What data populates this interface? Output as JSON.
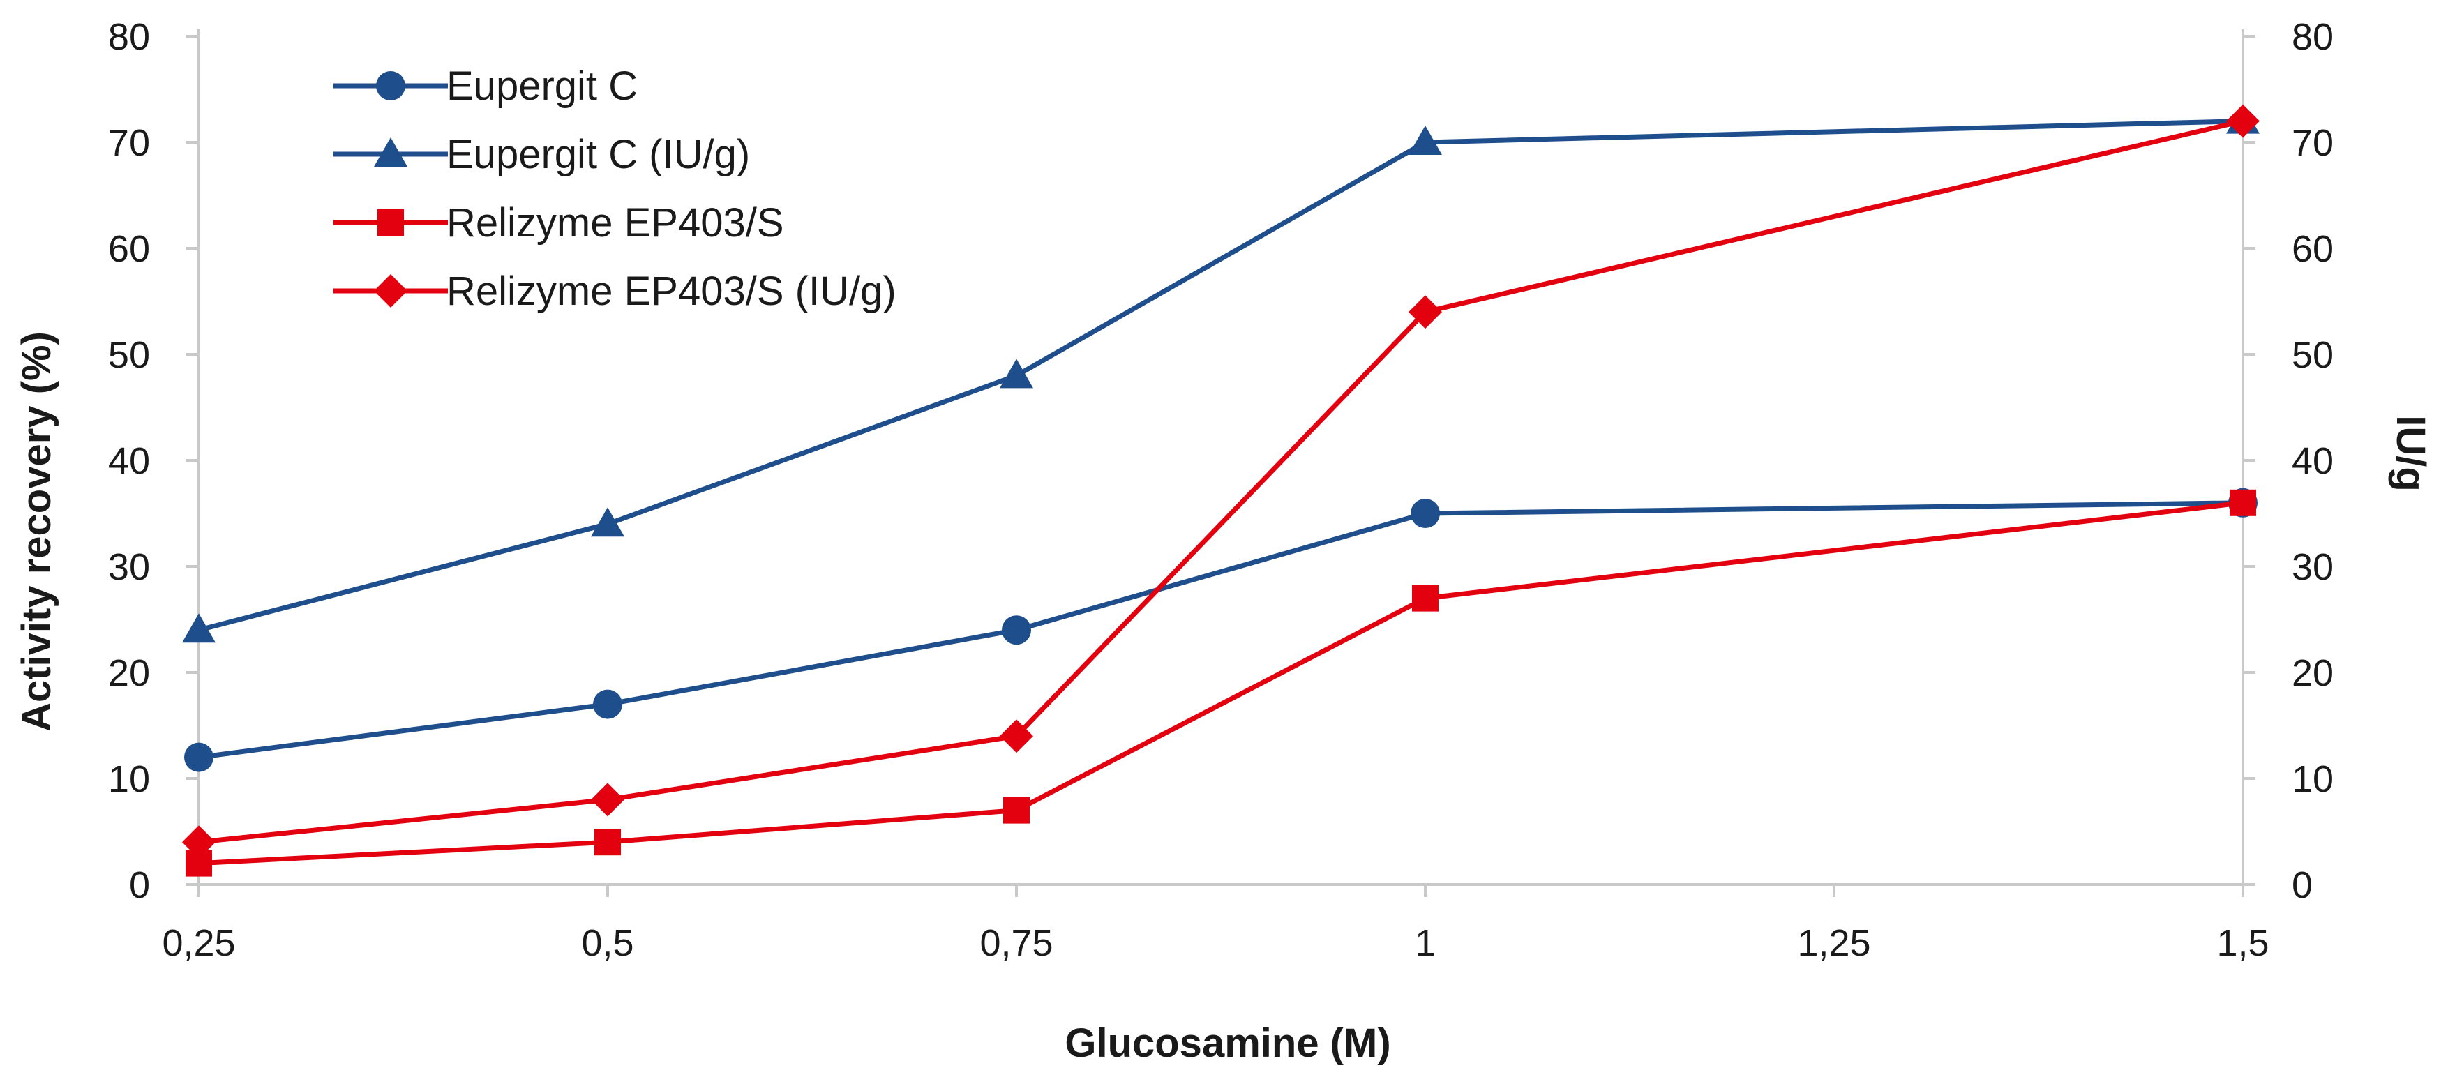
{
  "chart_data": {
    "type": "line",
    "title": "",
    "xlabel": "Glucosamine (M)",
    "ylabel": "Activity recovery (%)",
    "y2label": "IU/g",
    "xlim": [
      0.25,
      1.5
    ],
    "ylim": [
      0,
      80
    ],
    "y2lim": [
      0,
      80
    ],
    "x_ticks": [
      0.25,
      0.5,
      0.75,
      1,
      1.25,
      1.5
    ],
    "x_tick_labels": [
      "0,25",
      "0,5",
      "0,75",
      "1",
      "1,25",
      "1,5"
    ],
    "y_ticks": [
      0,
      10,
      20,
      30,
      40,
      50,
      60,
      70,
      80
    ],
    "y_tick_labels": [
      "0",
      "10",
      "20",
      "30",
      "40",
      "50",
      "60",
      "70",
      "80"
    ],
    "y2_ticks": [
      0,
      10,
      20,
      30,
      40,
      50,
      60,
      70,
      80
    ],
    "y2_tick_labels": [
      "0",
      "10",
      "20",
      "30",
      "40",
      "50",
      "60",
      "70",
      "80"
    ],
    "grid": false,
    "legend_position": "top-left",
    "series": [
      {
        "name": "Eupergit C",
        "axis": "left",
        "color": "#1f4e8c",
        "marker": "circle",
        "x": [
          0.25,
          0.5,
          0.75,
          1,
          1.5
        ],
        "values": [
          12,
          17,
          24,
          35,
          36
        ]
      },
      {
        "name": "Eupergit C (IU/g)",
        "axis": "right",
        "color": "#1f4e8c",
        "marker": "triangle",
        "x": [
          0.25,
          0.5,
          0.75,
          1,
          1.5
        ],
        "values": [
          24,
          34,
          48,
          70,
          72
        ]
      },
      {
        "name": "Relizyme EP403/S",
        "axis": "left",
        "color": "#e3000f",
        "marker": "square",
        "x": [
          0.25,
          0.5,
          0.75,
          1,
          1.5
        ],
        "values": [
          2,
          4,
          7,
          27,
          36
        ]
      },
      {
        "name": "Relizyme EP403/S (IU/g)",
        "axis": "right",
        "color": "#e3000f",
        "marker": "diamond",
        "x": [
          0.25,
          0.5,
          0.75,
          1,
          1.5
        ],
        "values": [
          4,
          8,
          14,
          54,
          72
        ]
      }
    ]
  }
}
